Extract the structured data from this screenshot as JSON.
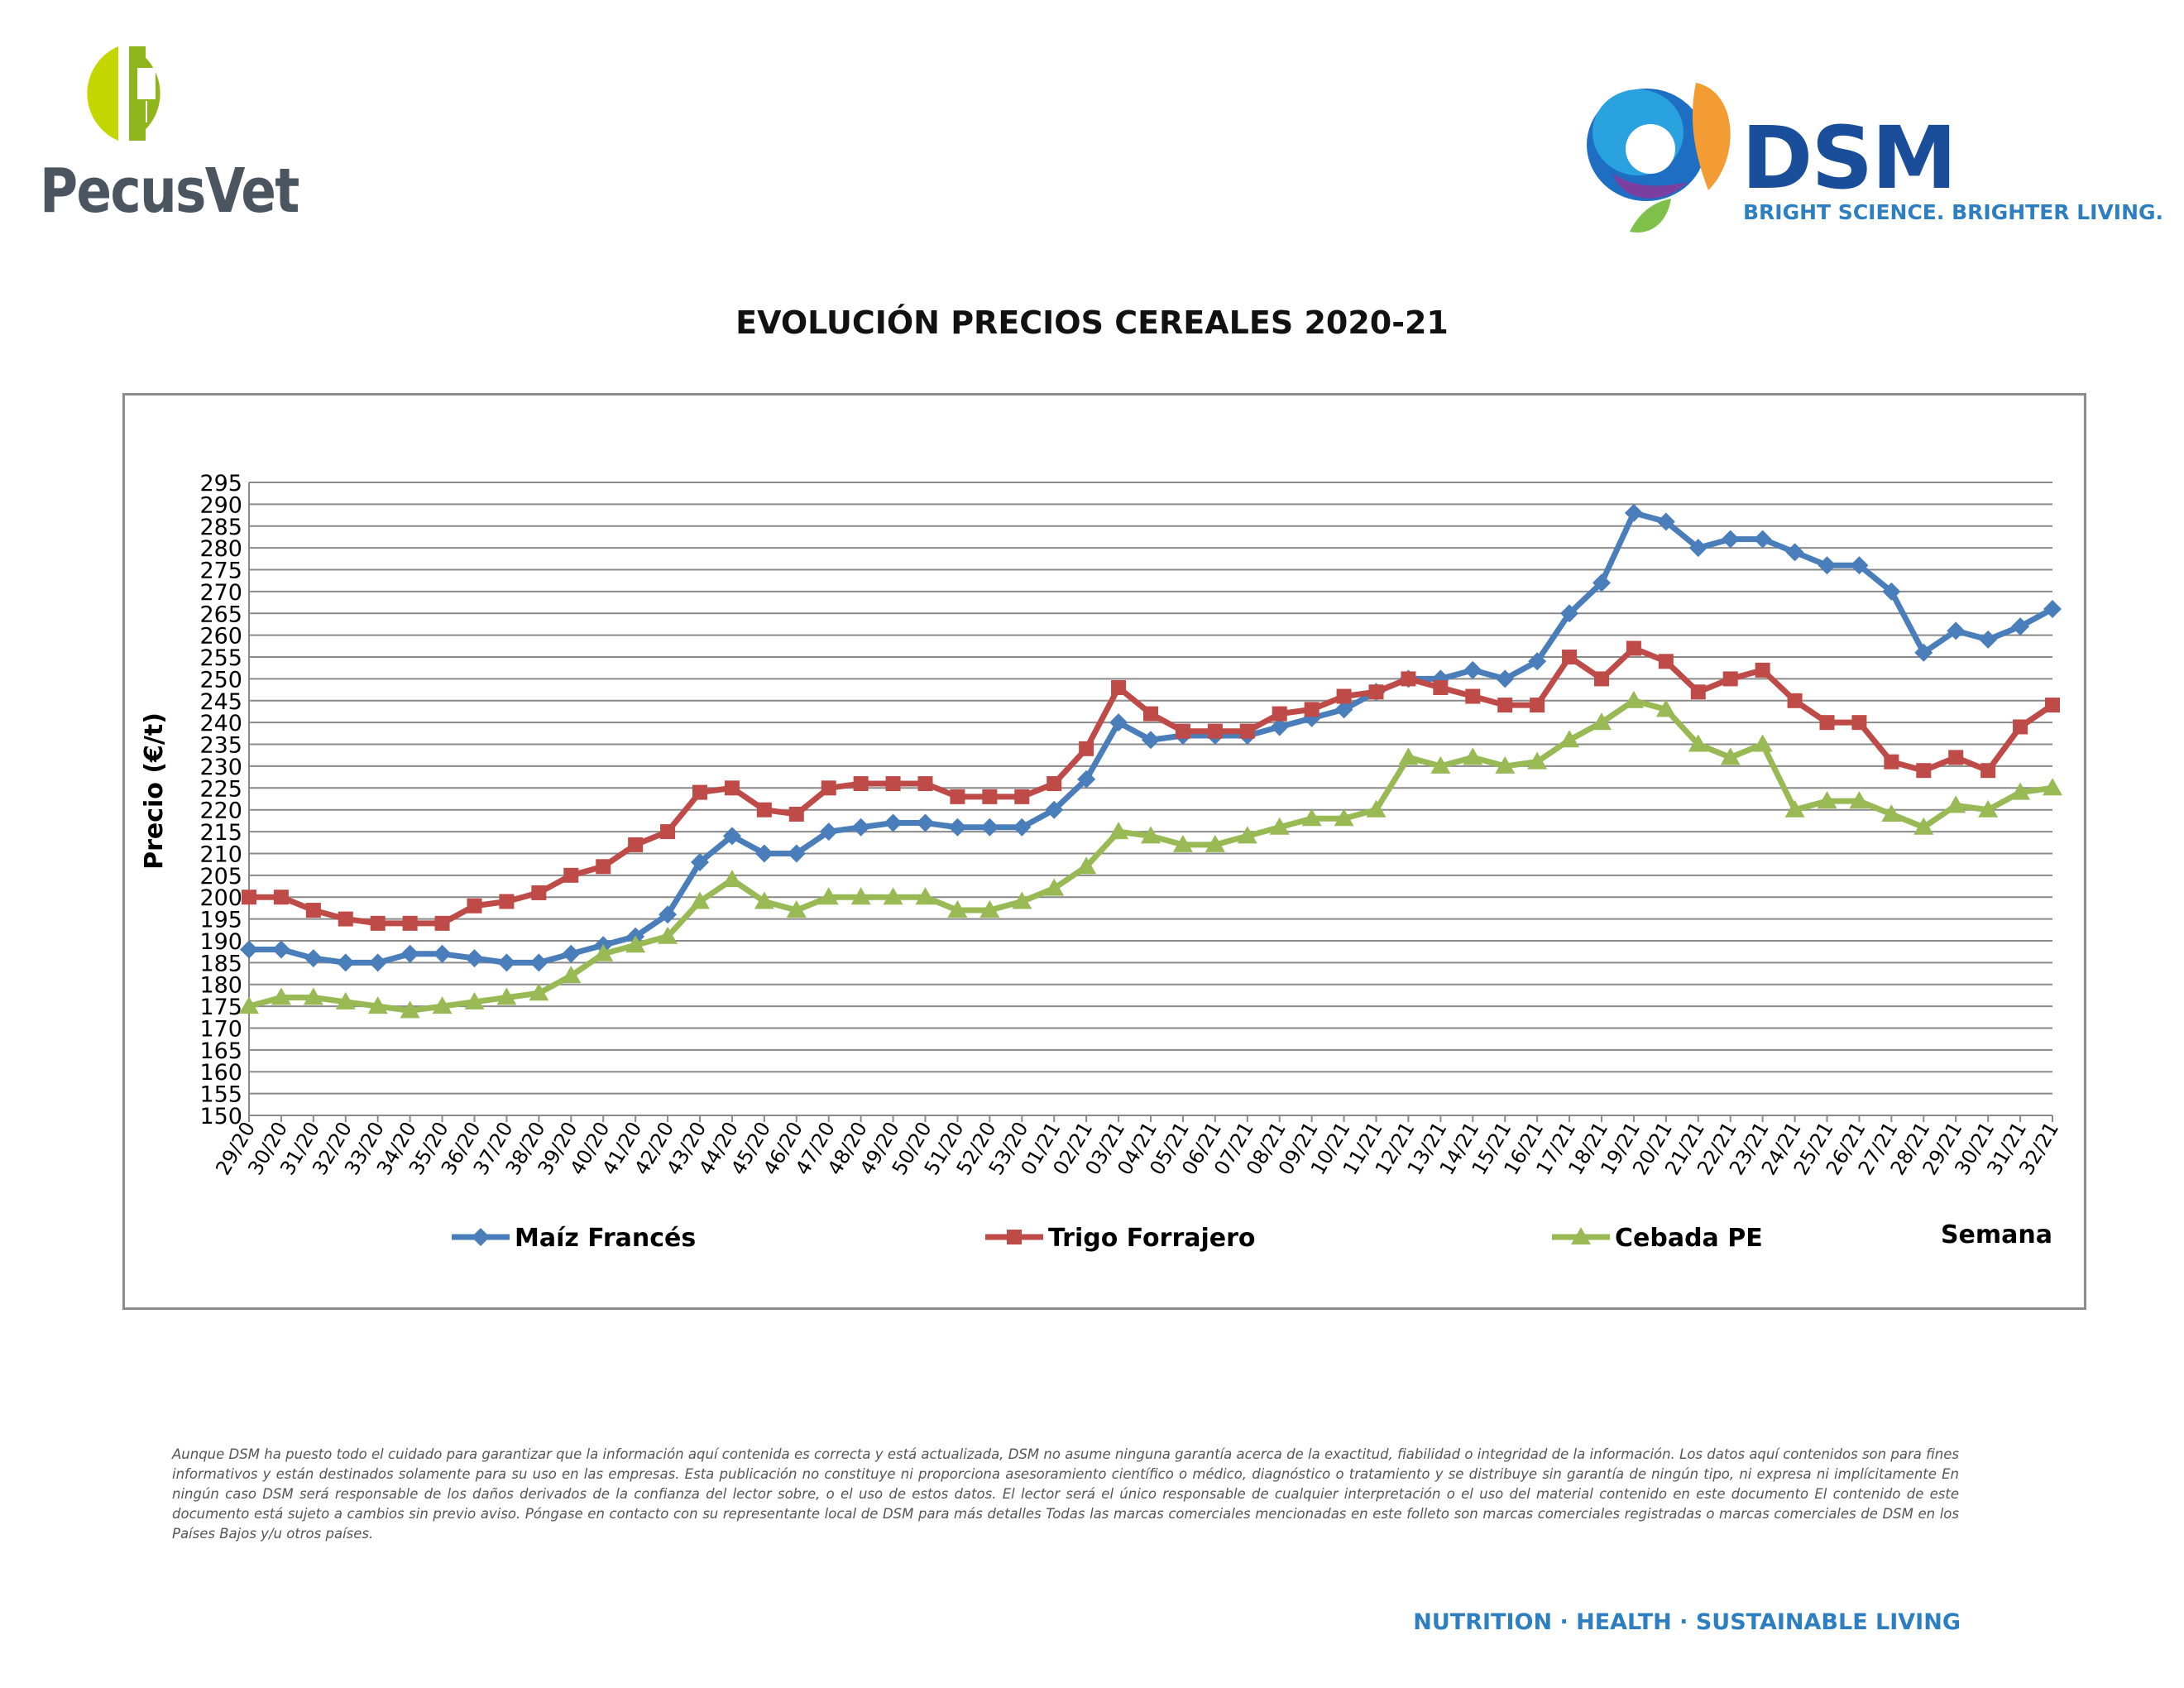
{
  "header": {
    "left_logo_name": "PecusVet",
    "right_logo_name": "DSM",
    "right_logo_tagline": "BRIGHT SCIENCE. BRIGHTER LIVING."
  },
  "colors": {
    "maiz": "#4a7ebb",
    "trigo": "#be4b48",
    "cebada": "#98b954",
    "dsm_blue": "#1a4e9a",
    "dsm_light_blue": "#2d7fc1",
    "pecusvet_green": "#a8c21c"
  },
  "chart_data": {
    "type": "line",
    "title": "EVOLUCIÓN PRECIOS CEREALES 2020-21",
    "ylabel": "Precio (€/t)",
    "xlabel": "Semana",
    "ylim": [
      150,
      295
    ],
    "ytick_step": 5,
    "grid": true,
    "legend_position": "bottom",
    "categories": [
      "29/20",
      "30/20",
      "31/20",
      "32/20",
      "33/20",
      "34/20",
      "35/20",
      "36/20",
      "37/20",
      "38/20",
      "39/20",
      "40/20",
      "41/20",
      "42/20",
      "43/20",
      "44/20",
      "45/20",
      "46/20",
      "47/20",
      "48/20",
      "49/20",
      "50/20",
      "51/20",
      "52/20",
      "53/20",
      "01/21",
      "02/21",
      "03/21",
      "04/21",
      "05/21",
      "06/21",
      "07/21",
      "08/21",
      "09/21",
      "10/21",
      "11/21",
      "12/21",
      "13/21",
      "14/21",
      "15/21",
      "16/21",
      "17/21",
      "18/21",
      "19/21",
      "20/21",
      "21/21",
      "22/21",
      "23/21",
      "24/21",
      "25/21",
      "26/21",
      "27/21",
      "28/21",
      "29/21",
      "30/21",
      "31/21",
      "32/21"
    ],
    "series": [
      {
        "name": "Maíz Francés",
        "marker": "diamond",
        "color": "#4a7ebb",
        "values": [
          188,
          188,
          186,
          185,
          185,
          187,
          187,
          186,
          185,
          185,
          187,
          189,
          191,
          196,
          208,
          214,
          210,
          210,
          215,
          216,
          217,
          217,
          216,
          216,
          216,
          220,
          227,
          240,
          236,
          237,
          237,
          237,
          239,
          241,
          243,
          247,
          250,
          250,
          252,
          250,
          254,
          265,
          272,
          288,
          286,
          280,
          282,
          282,
          279,
          276,
          276,
          270,
          256,
          261,
          259,
          262,
          266
        ]
      },
      {
        "name": "Trigo Forrajero",
        "marker": "square",
        "color": "#be4b48",
        "values": [
          200,
          200,
          197,
          195,
          194,
          194,
          194,
          198,
          199,
          201,
          205,
          207,
          212,
          215,
          224,
          225,
          220,
          219,
          225,
          226,
          226,
          226,
          223,
          223,
          223,
          226,
          234,
          248,
          242,
          238,
          238,
          238,
          242,
          243,
          246,
          247,
          250,
          248,
          246,
          244,
          244,
          255,
          250,
          257,
          254,
          247,
          250,
          252,
          245,
          240,
          240,
          231,
          229,
          232,
          229,
          239,
          244
        ]
      },
      {
        "name": "Cebada PE",
        "marker": "triangle",
        "color": "#98b954",
        "values": [
          175,
          177,
          177,
          176,
          175,
          174,
          175,
          176,
          177,
          178,
          182,
          187,
          189,
          191,
          199,
          204,
          199,
          197,
          200,
          200,
          200,
          200,
          197,
          197,
          199,
          202,
          207,
          215,
          214,
          212,
          212,
          214,
          216,
          218,
          218,
          220,
          232,
          230,
          232,
          230,
          231,
          236,
          240,
          245,
          243,
          235,
          232,
          235,
          220,
          222,
          222,
          219,
          216,
          221,
          220,
          224,
          225
        ]
      }
    ]
  },
  "disclaimer": "Aunque DSM ha puesto todo el cuidado para garantizar que la información aquí contenida es correcta y está actualizada, DSM no asume ninguna garantía acerca de la exactitud, fiabilidad o integridad de la información. Los datos aquí contenidos son para fines informativos y están destinados solamente para su uso en las empresas. Esta publicación no constituye ni proporciona asesoramiento científico o médico, diagnóstico o tratamiento y se distribuye sin garantía de ningún tipo, ni expresa ni implícitamente En ningún caso DSM será responsable de los daños derivados de la confianza del lector sobre, o el uso de estos datos. El lector será el único responsable de cualquier interpretación o el uso del material contenido en este documento El contenido de este documento está sujeto a cambios sin previo aviso. Póngase en contacto con su representante local de DSM para más detalles Todas las marcas comerciales mencionadas en este folleto son marcas comerciales registradas o marcas comerciales de DSM en los Países Bajos y/u otros países.",
  "footer": {
    "slogan": "NUTRITION · HEALTH · SUSTAINABLE LIVING"
  }
}
